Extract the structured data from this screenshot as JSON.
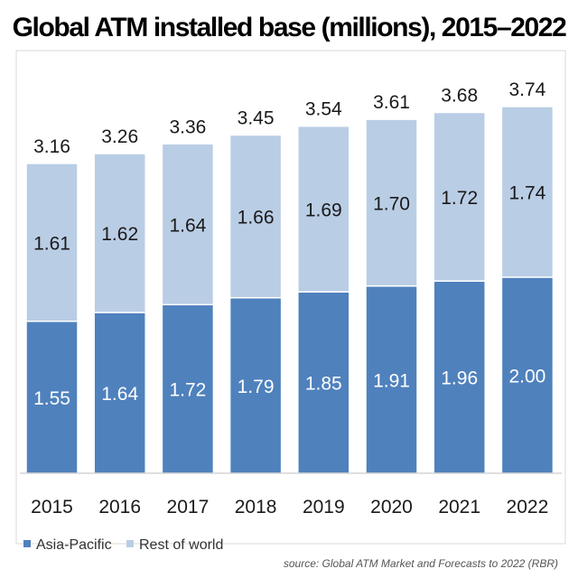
{
  "chart_data": {
    "type": "bar",
    "stacked": true,
    "title": "Global ATM installed base (millions), 2015–2022",
    "xlabel": "",
    "ylabel": "",
    "ylim": [
      0,
      3.74
    ],
    "grid": false,
    "legend_position": "bottom-left",
    "categories": [
      "2015",
      "2016",
      "2017",
      "2018",
      "2019",
      "2020",
      "2021",
      "2022"
    ],
    "series": [
      {
        "name": "Asia-Pacific",
        "color": "#4f81bd",
        "values": [
          1.55,
          1.64,
          1.72,
          1.79,
          1.85,
          1.91,
          1.96,
          2.0
        ]
      },
      {
        "name": "Rest of world",
        "color": "#b9cde5",
        "values": [
          1.61,
          1.62,
          1.64,
          1.66,
          1.69,
          1.7,
          1.72,
          1.74
        ]
      }
    ],
    "totals": [
      3.16,
      3.26,
      3.36,
      3.45,
      3.54,
      3.61,
      3.68,
      3.74
    ],
    "source": "source: Global ATM Market and Forecasts to 2022 (RBR)"
  }
}
